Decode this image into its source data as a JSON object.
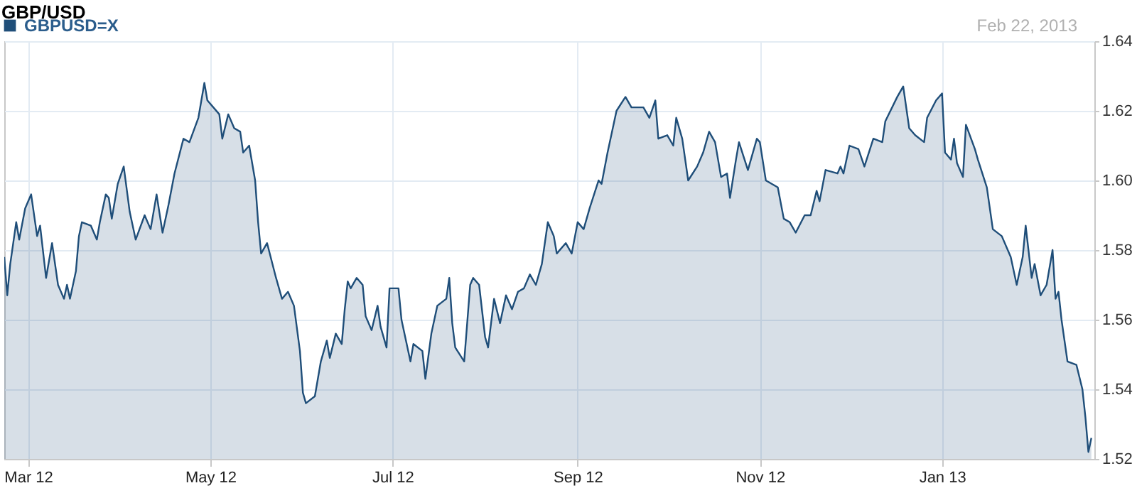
{
  "chart_data": {
    "type": "area",
    "title": "GBP/USD",
    "annotations": [
      "Feb 22, 2013"
    ],
    "legend": "top left",
    "grid": true,
    "xlim": [
      "2012-02-22",
      "2013-02-21"
    ],
    "xticks": [
      {
        "value": "2012-03-01",
        "label": "Mar 12"
      },
      {
        "value": "2012-05-01",
        "label": "May 12"
      },
      {
        "value": "2012-07-01",
        "label": "Jul 12"
      },
      {
        "value": "2012-09-01",
        "label": "Sep 12"
      },
      {
        "value": "2012-11-01",
        "label": "Nov 12"
      },
      {
        "value": "2013-01-01",
        "label": "Jan 13"
      }
    ],
    "ylim": [
      1.52,
      1.64
    ],
    "yticks": [
      1.52,
      1.54,
      1.56,
      1.58,
      {
        "value": 1.6,
        "label": "1.60"
      },
      1.62,
      1.64
    ],
    "x": [
      "2012-02-22",
      "2012-02-23",
      "2012-02-24",
      "2012-02-26",
      "2012-02-27",
      "2012-02-29",
      "2012-03-02",
      "2012-03-04",
      "2012-03-05",
      "2012-03-07",
      "2012-03-09",
      "2012-03-11",
      "2012-03-13",
      "2012-03-14",
      "2012-03-15",
      "2012-03-17",
      "2012-03-18",
      "2012-03-19",
      "2012-03-22",
      "2012-03-24",
      "2012-03-25",
      "2012-03-27",
      "2012-03-28",
      "2012-03-29",
      "2012-03-31",
      "2012-04-02",
      "2012-04-04",
      "2012-04-06",
      "2012-04-09",
      "2012-04-11",
      "2012-04-13",
      "2012-04-15",
      "2012-04-17",
      "2012-04-19",
      "2012-04-22",
      "2012-04-24",
      "2012-04-27",
      "2012-04-29",
      "2012-04-30",
      "2012-05-04",
      "2012-05-05",
      "2012-05-07",
      "2012-05-09",
      "2012-05-11",
      "2012-05-12",
      "2012-05-14",
      "2012-05-16",
      "2012-05-17",
      "2012-05-18",
      "2012-05-20",
      "2012-05-23",
      "2012-05-25",
      "2012-05-27",
      "2012-05-29",
      "2012-05-31",
      "2012-06-01",
      "2012-06-02",
      "2012-06-05",
      "2012-06-07",
      "2012-06-09",
      "2012-06-10",
      "2012-06-12",
      "2012-06-14",
      "2012-06-15",
      "2012-06-16",
      "2012-06-17",
      "2012-06-19",
      "2012-06-21",
      "2012-06-22",
      "2012-06-24",
      "2012-06-26",
      "2012-06-27",
      "2012-06-29",
      "2012-06-30",
      "2012-07-03",
      "2012-07-04",
      "2012-07-07",
      "2012-07-08",
      "2012-07-11",
      "2012-07-12",
      "2012-07-14",
      "2012-07-16",
      "2012-07-19",
      "2012-07-20",
      "2012-07-21",
      "2012-07-22",
      "2012-07-25",
      "2012-07-27",
      "2012-07-28",
      "2012-07-30",
      "2012-08-01",
      "2012-08-02",
      "2012-08-04",
      "2012-08-06",
      "2012-08-08",
      "2012-08-10",
      "2012-08-12",
      "2012-08-14",
      "2012-08-16",
      "2012-08-18",
      "2012-08-20",
      "2012-08-22",
      "2012-08-24",
      "2012-08-25",
      "2012-08-28",
      "2012-08-30",
      "2012-09-01",
      "2012-09-03",
      "2012-09-05",
      "2012-09-08",
      "2012-09-09",
      "2012-09-11",
      "2012-09-14",
      "2012-09-17",
      "2012-09-19",
      "2012-09-23",
      "2012-09-25",
      "2012-09-27",
      "2012-09-28",
      "2012-10-01",
      "2012-10-03",
      "2012-10-04",
      "2012-10-06",
      "2012-10-08",
      "2012-10-11",
      "2012-10-13",
      "2012-10-15",
      "2012-10-17",
      "2012-10-19",
      "2012-10-21",
      "2012-10-22",
      "2012-10-24",
      "2012-10-25",
      "2012-10-28",
      "2012-10-31",
      "2012-11-01",
      "2012-11-03",
      "2012-11-07",
      "2012-11-09",
      "2012-11-11",
      "2012-11-13",
      "2012-11-16",
      "2012-11-18",
      "2012-11-20",
      "2012-11-21",
      "2012-11-23",
      "2012-11-27",
      "2012-11-28",
      "2012-11-29",
      "2012-12-01",
      "2012-12-04",
      "2012-12-06",
      "2012-12-09",
      "2012-12-12",
      "2012-12-13",
      "2012-12-17",
      "2012-12-19",
      "2012-12-21",
      "2012-12-23",
      "2012-12-26",
      "2012-12-27",
      "2012-12-30",
      "2013-01-01",
      "2013-01-02",
      "2013-01-04",
      "2013-01-05",
      "2013-01-06",
      "2013-01-08",
      "2013-01-09",
      "2013-01-12",
      "2013-01-13",
      "2013-01-16",
      "2013-01-18",
      "2013-01-21",
      "2013-01-24",
      "2013-01-26",
      "2013-01-28",
      "2013-01-29",
      "2013-01-31",
      "2013-02-01",
      "2013-02-03",
      "2013-02-05",
      "2013-02-07",
      "2013-02-08",
      "2013-02-09",
      "2013-02-10",
      "2013-02-12",
      "2013-02-15",
      "2013-02-17",
      "2013-02-18",
      "2013-02-19",
      "2013-02-20"
    ],
    "series": [
      {
        "name": "GBPUSD=X",
        "color": "#1f4e79",
        "values": [
          1.578,
          1.567,
          1.576,
          1.588,
          1.583,
          1.592,
          1.596,
          1.584,
          1.587,
          1.572,
          1.582,
          1.57,
          1.566,
          1.57,
          1.566,
          1.574,
          1.584,
          1.588,
          1.587,
          1.583,
          1.588,
          1.596,
          1.595,
          1.589,
          1.599,
          1.604,
          1.591,
          1.583,
          1.59,
          1.586,
          1.596,
          1.585,
          1.593,
          1.602,
          1.612,
          1.611,
          1.618,
          1.628,
          1.623,
          1.619,
          1.612,
          1.619,
          1.615,
          1.614,
          1.608,
          1.61,
          1.6,
          1.588,
          1.579,
          1.582,
          1.572,
          1.566,
          1.568,
          1.564,
          1.551,
          1.539,
          1.536,
          1.538,
          1.548,
          1.554,
          1.549,
          1.556,
          1.553,
          1.563,
          1.571,
          1.569,
          1.572,
          1.57,
          1.561,
          1.557,
          1.564,
          1.558,
          1.552,
          1.569,
          1.569,
          1.56,
          1.548,
          1.553,
          1.551,
          1.543,
          1.556,
          1.564,
          1.566,
          1.572,
          1.559,
          1.552,
          1.548,
          1.57,
          1.572,
          1.57,
          1.555,
          1.552,
          1.566,
          1.559,
          1.567,
          1.563,
          1.568,
          1.569,
          1.573,
          1.57,
          1.576,
          1.588,
          1.584,
          1.579,
          1.582,
          1.579,
          1.588,
          1.586,
          1.592,
          1.6,
          1.599,
          1.608,
          1.62,
          1.624,
          1.621,
          1.621,
          1.618,
          1.623,
          1.612,
          1.613,
          1.61,
          1.618,
          1.612,
          1.6,
          1.604,
          1.608,
          1.614,
          1.611,
          1.601,
          1.602,
          1.595,
          1.606,
          1.611,
          1.603,
          1.612,
          1.611,
          1.6,
          1.598,
          1.589,
          1.588,
          1.585,
          1.59,
          1.59,
          1.597,
          1.594,
          1.603,
          1.602,
          1.604,
          1.602,
          1.61,
          1.609,
          1.604,
          1.612,
          1.611,
          1.617,
          1.624,
          1.627,
          1.615,
          1.613,
          1.611,
          1.618,
          1.623,
          1.625,
          1.608,
          1.606,
          1.612,
          1.605,
          1.601,
          1.616,
          1.609,
          1.606,
          1.598,
          1.586,
          1.584,
          1.578,
          1.57,
          1.578,
          1.587,
          1.572,
          1.576,
          1.567,
          1.57,
          1.58,
          1.566,
          1.568,
          1.56,
          1.548,
          1.547,
          1.54,
          1.532,
          1.522,
          1.526
        ]
      }
    ]
  }
}
